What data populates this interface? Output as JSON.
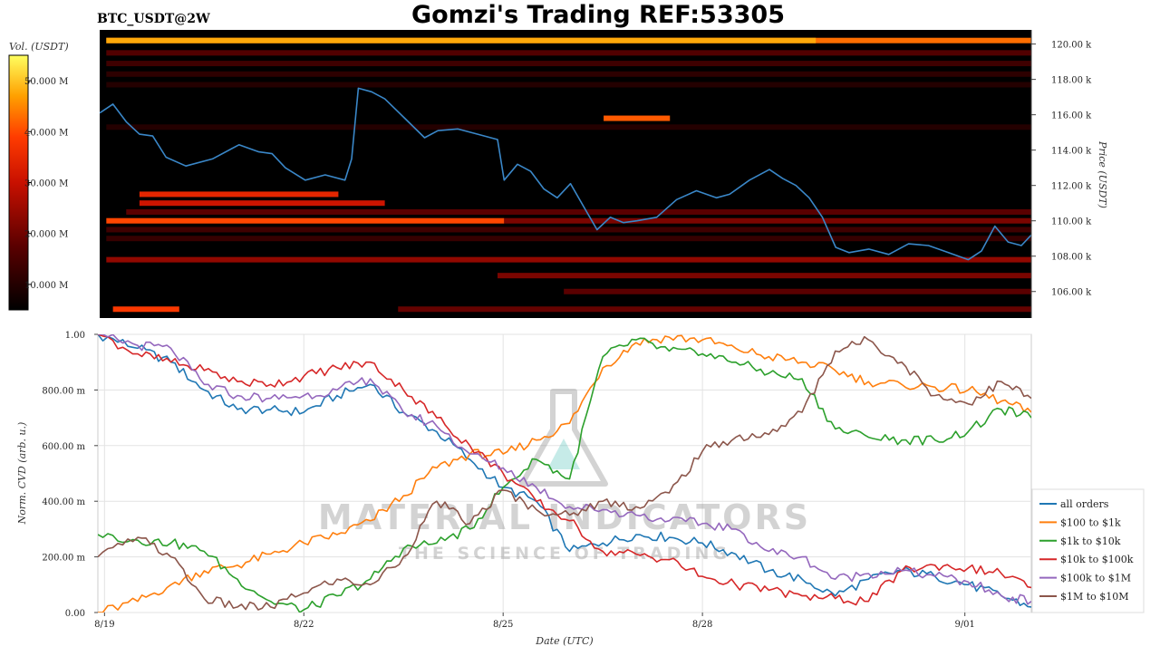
{
  "title": "Gomzi's Trading REF:53305",
  "pair_label": "BTC_USDT@2W",
  "watermark": {
    "brand": "MATERIAL INDICATORS",
    "tagline": "THE SCIENCE OF TRADING"
  },
  "chart_data": [
    {
      "type": "heatmap",
      "name": "order-book-heatmap",
      "colorbar": {
        "label": "Vol. (USDT)",
        "tick_labels": [
          "50.000 M",
          "40.000 M",
          "30.000 M",
          "20.000 M",
          "10.000 M"
        ],
        "tick_values": [
          50,
          40,
          30,
          20,
          10
        ],
        "range": [
          5,
          55
        ],
        "colors": [
          "#000000",
          "#5a0000",
          "#c81000",
          "#ff3c00",
          "#ffa000",
          "#ffff60"
        ]
      },
      "y_axis": {
        "label": "Price (USDT)",
        "ylim": [
          104.5,
          120.8
        ],
        "tick_values": [
          106,
          108,
          110,
          112,
          114,
          116,
          118,
          120
        ],
        "tick_labels": [
          "106.00 k",
          "108.00 k",
          "110.00 k",
          "112.00 k",
          "114.00 k",
          "116.00 k",
          "118.00 k",
          "120.00 k"
        ]
      },
      "x_axis": {
        "xlim": [
          -0.1,
          13.95
        ]
      },
      "liquidity_bands": [
        {
          "price": 120.2,
          "from": 0.0,
          "to": 13.95,
          "level": 40
        },
        {
          "price": 120.2,
          "from": 0.0,
          "to": 10.7,
          "level": 46
        },
        {
          "price": 119.5,
          "from": 0.0,
          "to": 13.95,
          "level": 14
        },
        {
          "price": 118.9,
          "from": 0.0,
          "to": 13.95,
          "level": 12
        },
        {
          "price": 118.3,
          "from": 0.0,
          "to": 13.95,
          "level": 10
        },
        {
          "price": 117.7,
          "from": 0.0,
          "to": 13.95,
          "level": 9
        },
        {
          "price": 115.8,
          "from": 7.5,
          "to": 8.5,
          "level": 38
        },
        {
          "price": 115.3,
          "from": 0.0,
          "to": 13.95,
          "level": 9
        },
        {
          "price": 111.5,
          "from": 0.5,
          "to": 3.5,
          "level": 30
        },
        {
          "price": 111.0,
          "from": 0.5,
          "to": 4.2,
          "level": 26
        },
        {
          "price": 110.5,
          "from": 0.3,
          "to": 13.95,
          "level": 15
        },
        {
          "price": 110.0,
          "from": 0.0,
          "to": 6.0,
          "level": 36
        },
        {
          "price": 110.0,
          "from": 6.0,
          "to": 13.95,
          "level": 18
        },
        {
          "price": 109.5,
          "from": 0.0,
          "to": 13.95,
          "level": 12
        },
        {
          "price": 109.0,
          "from": 0.0,
          "to": 13.95,
          "level": 11
        },
        {
          "price": 107.8,
          "from": 0.0,
          "to": 13.95,
          "level": 20
        },
        {
          "price": 106.9,
          "from": 5.9,
          "to": 13.95,
          "level": 18
        },
        {
          "price": 106.0,
          "from": 6.9,
          "to": 13.95,
          "level": 15
        },
        {
          "price": 105.0,
          "from": 0.1,
          "to": 1.1,
          "level": 34
        },
        {
          "price": 105.0,
          "from": 4.4,
          "to": 13.95,
          "level": 16
        }
      ],
      "series": [
        {
          "name": "BTC price",
          "color": "#3a87c8",
          "x": [
            -0.1,
            0.1,
            0.3,
            0.5,
            0.7,
            0.9,
            1.2,
            1.6,
            2.0,
            2.3,
            2.5,
            2.7,
            3.0,
            3.3,
            3.6,
            3.7,
            3.8,
            4.0,
            4.2,
            4.5,
            4.8,
            5.0,
            5.3,
            5.6,
            5.9,
            6.0,
            6.2,
            6.4,
            6.6,
            6.8,
            7.0,
            7.2,
            7.4,
            7.6,
            7.8,
            8.0,
            8.3,
            8.6,
            8.9,
            9.2,
            9.4,
            9.7,
            10.0,
            10.2,
            10.4,
            10.6,
            10.8,
            11.0,
            11.2,
            11.5,
            11.8,
            12.1,
            12.4,
            12.7,
            13.0,
            13.2,
            13.4,
            13.6,
            13.8,
            13.95
          ],
          "y": [
            116.1,
            116.6,
            115.6,
            114.9,
            114.8,
            113.6,
            113.1,
            113.5,
            114.3,
            113.9,
            113.8,
            113.0,
            112.3,
            112.6,
            112.3,
            113.5,
            117.5,
            117.3,
            116.9,
            115.8,
            114.7,
            115.1,
            115.2,
            114.9,
            114.6,
            112.3,
            113.2,
            112.8,
            111.8,
            111.3,
            112.1,
            110.8,
            109.5,
            110.2,
            109.9,
            110.0,
            110.2,
            111.2,
            111.7,
            111.3,
            111.5,
            112.3,
            112.9,
            112.4,
            112.0,
            111.3,
            110.2,
            108.5,
            108.2,
            108.4,
            108.1,
            108.7,
            108.6,
            108.2,
            107.8,
            108.3,
            109.7,
            108.8,
            108.6,
            109.2
          ]
        }
      ]
    },
    {
      "type": "line",
      "name": "normalized-cvd",
      "xlabel": "Date (UTC)",
      "ylabel": "Norm. CVD (arb. u.)",
      "ylim": [
        0,
        1
      ],
      "xlim": [
        -0.1,
        13.95
      ],
      "x_tick_labels": [
        "8/19",
        "8/22",
        "8/25",
        "8/28",
        "9/01"
      ],
      "x_tick_values": [
        0,
        3,
        6,
        9,
        12.95
      ],
      "y_tick_labels": [
        "0.00",
        "200.00 m",
        "400.00 m",
        "600.00 m",
        "800.00 m",
        "1.00"
      ],
      "y_tick_values": [
        0,
        0.2,
        0.4,
        0.6,
        0.8,
        1.0
      ],
      "grid": true,
      "legend_position": "right",
      "x": [
        -0.1,
        0.5,
        1.0,
        1.5,
        2.0,
        2.5,
        3.0,
        3.5,
        4.0,
        4.5,
        5.0,
        5.5,
        6.0,
        6.5,
        7.0,
        7.5,
        8.0,
        8.5,
        9.0,
        9.5,
        10.0,
        10.5,
        11.0,
        11.5,
        12.0,
        12.5,
        13.0,
        13.5,
        13.95
      ],
      "series": [
        {
          "name": "all orders",
          "color": "#1f77b4",
          "values": [
            1.0,
            0.95,
            0.9,
            0.8,
            0.73,
            0.73,
            0.72,
            0.78,
            0.82,
            0.72,
            0.65,
            0.55,
            0.45,
            0.4,
            0.22,
            0.25,
            0.28,
            0.27,
            0.25,
            0.21,
            0.15,
            0.12,
            0.06,
            0.12,
            0.15,
            0.13,
            0.1,
            0.06,
            0.02
          ]
        },
        {
          "name": "$100 to $1k",
          "color": "#ff7f0e",
          "values": [
            0.0,
            0.04,
            0.1,
            0.15,
            0.17,
            0.21,
            0.25,
            0.28,
            0.33,
            0.42,
            0.52,
            0.57,
            0.57,
            0.62,
            0.68,
            0.88,
            0.97,
            0.99,
            0.98,
            0.95,
            0.92,
            0.9,
            0.87,
            0.83,
            0.82,
            0.81,
            0.8,
            0.76,
            0.72
          ]
        },
        {
          "name": "$1k to $10k",
          "color": "#2ca02c",
          "values": [
            0.28,
            0.26,
            0.25,
            0.22,
            0.12,
            0.04,
            0.01,
            0.06,
            0.12,
            0.23,
            0.25,
            0.3,
            0.45,
            0.55,
            0.48,
            0.92,
            0.98,
            0.94,
            0.93,
            0.9,
            0.86,
            0.84,
            0.66,
            0.63,
            0.62,
            0.62,
            0.65,
            0.73,
            0.7
          ]
        },
        {
          "name": "$10k to $100k",
          "color": "#d62728",
          "values": [
            1.0,
            0.93,
            0.9,
            0.87,
            0.83,
            0.82,
            0.85,
            0.88,
            0.9,
            0.8,
            0.7,
            0.6,
            0.5,
            0.4,
            0.33,
            0.22,
            0.21,
            0.19,
            0.13,
            0.1,
            0.08,
            0.06,
            0.05,
            0.04,
            0.15,
            0.17,
            0.16,
            0.14,
            0.09
          ]
        },
        {
          "name": "$100k to $1M",
          "color": "#9467bd",
          "values": [
            1.0,
            0.96,
            0.95,
            0.82,
            0.78,
            0.77,
            0.78,
            0.8,
            0.84,
            0.72,
            0.67,
            0.57,
            0.52,
            0.45,
            0.38,
            0.37,
            0.35,
            0.33,
            0.32,
            0.3,
            0.22,
            0.2,
            0.12,
            0.14,
            0.15,
            0.13,
            0.11,
            0.06,
            0.04
          ]
        },
        {
          "name": "$1M to $10M",
          "color": "#8c564b",
          "values": [
            0.2,
            0.27,
            0.2,
            0.05,
            0.02,
            0.02,
            0.07,
            0.12,
            0.1,
            0.2,
            0.4,
            0.32,
            0.44,
            0.37,
            0.35,
            0.4,
            0.38,
            0.43,
            0.58,
            0.63,
            0.64,
            0.72,
            0.94,
            0.98,
            0.9,
            0.78,
            0.75,
            0.83,
            0.77
          ]
        }
      ]
    }
  ]
}
